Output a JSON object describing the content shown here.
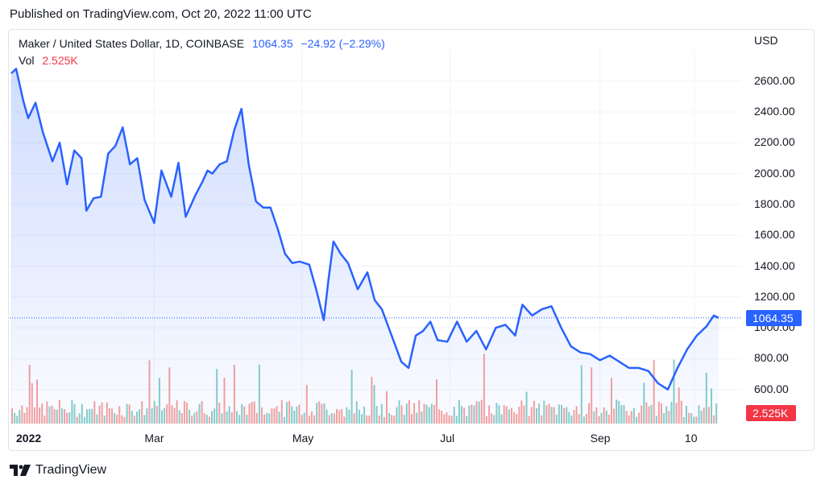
{
  "header": {
    "published": "Published on TradingView.com, Oct 20, 2022 11:00 UTC"
  },
  "legend": {
    "title": "Maker / United States Dollar, 1D, COINBASE",
    "price": "1064.35",
    "change": "−24.92 (−2.29%)",
    "vol_label": "Vol",
    "vol_value": "2.525K"
  },
  "axis": {
    "currency": "USD",
    "y_ticks": [
      "2600.00",
      "2400.00",
      "2200.00",
      "2000.00",
      "1800.00",
      "1600.00",
      "1400.00",
      "1200.00",
      "1000.00",
      "800.00",
      "600.00"
    ],
    "x_ticks": [
      "2022",
      "Mar",
      "May",
      "Jul",
      "Sep",
      "10"
    ]
  },
  "tags": {
    "last_price": "1064.35",
    "last_volume": "2.525K"
  },
  "brand": {
    "name": "TradingView"
  },
  "colors": {
    "line": "#2962ff",
    "up_volume": "#26a69a",
    "down_volume": "#ef5350",
    "grid": "#f0f3fa"
  },
  "chart_data": {
    "type": "line",
    "title": "Maker / United States Dollar, 1D, COINBASE",
    "ylabel": "USD",
    "ylim": [
      500,
      2700
    ],
    "x_range": [
      "2022-01-01",
      "2022-10-20"
    ],
    "grid": true,
    "series": [
      {
        "name": "MKR/USD",
        "x": [
          "2022-01-01",
          "2022-01-03",
          "2022-01-06",
          "2022-01-08",
          "2022-01-11",
          "2022-01-14",
          "2022-01-18",
          "2022-01-21",
          "2022-01-24",
          "2022-01-27",
          "2022-01-30",
          "2022-02-01",
          "2022-02-04",
          "2022-02-07",
          "2022-02-10",
          "2022-02-13",
          "2022-02-16",
          "2022-02-19",
          "2022-02-22",
          "2022-02-25",
          "2022-03-01",
          "2022-03-04",
          "2022-03-08",
          "2022-03-11",
          "2022-03-14",
          "2022-03-18",
          "2022-03-21",
          "2022-03-23",
          "2022-03-25",
          "2022-03-28",
          "2022-03-31",
          "2022-04-03",
          "2022-04-06",
          "2022-04-09",
          "2022-04-12",
          "2022-04-15",
          "2022-04-18",
          "2022-04-21",
          "2022-04-24",
          "2022-04-27",
          "2022-04-30",
          "2022-05-04",
          "2022-05-07",
          "2022-05-10",
          "2022-05-12",
          "2022-05-14",
          "2022-05-17",
          "2022-05-20",
          "2022-05-24",
          "2022-05-28",
          "2022-05-31",
          "2022-06-03",
          "2022-06-07",
          "2022-06-11",
          "2022-06-14",
          "2022-06-17",
          "2022-06-20",
          "2022-06-23",
          "2022-06-26",
          "2022-06-30",
          "2022-07-04",
          "2022-07-08",
          "2022-07-12",
          "2022-07-16",
          "2022-07-20",
          "2022-07-24",
          "2022-07-28",
          "2022-07-31",
          "2022-08-04",
          "2022-08-08",
          "2022-08-12",
          "2022-08-16",
          "2022-08-20",
          "2022-08-24",
          "2022-08-28",
          "2022-09-01",
          "2022-09-05",
          "2022-09-09",
          "2022-09-13",
          "2022-09-17",
          "2022-09-21",
          "2022-09-25",
          "2022-09-29",
          "2022-10-03",
          "2022-10-07",
          "2022-10-11",
          "2022-10-15",
          "2022-10-18",
          "2022-10-20"
        ],
        "values": [
          2650,
          2680,
          2470,
          2360,
          2460,
          2270,
          2080,
          2200,
          1930,
          2150,
          2100,
          1760,
          1840,
          1850,
          2130,
          2180,
          2300,
          2060,
          2100,
          1830,
          1680,
          2020,
          1850,
          2070,
          1720,
          1860,
          1950,
          2020,
          2000,
          2060,
          2080,
          2280,
          2420,
          2060,
          1820,
          1780,
          1780,
          1640,
          1480,
          1420,
          1430,
          1410,
          1240,
          1050,
          1320,
          1560,
          1480,
          1420,
          1250,
          1360,
          1180,
          1120,
          950,
          780,
          740,
          950,
          980,
          1040,
          920,
          910,
          1040,
          910,
          980,
          860,
          1000,
          1020,
          950,
          1150,
          1080,
          1120,
          1140,
          1000,
          880,
          840,
          830,
          790,
          820,
          780,
          740,
          740,
          720,
          640,
          600,
          740,
          860,
          950,
          1010,
          1080,
          1064.35
        ]
      }
    ],
    "volume": {
      "name": "Vol",
      "last": "2.525K",
      "note": "daily volume bars, green = up day, red = down day"
    }
  }
}
